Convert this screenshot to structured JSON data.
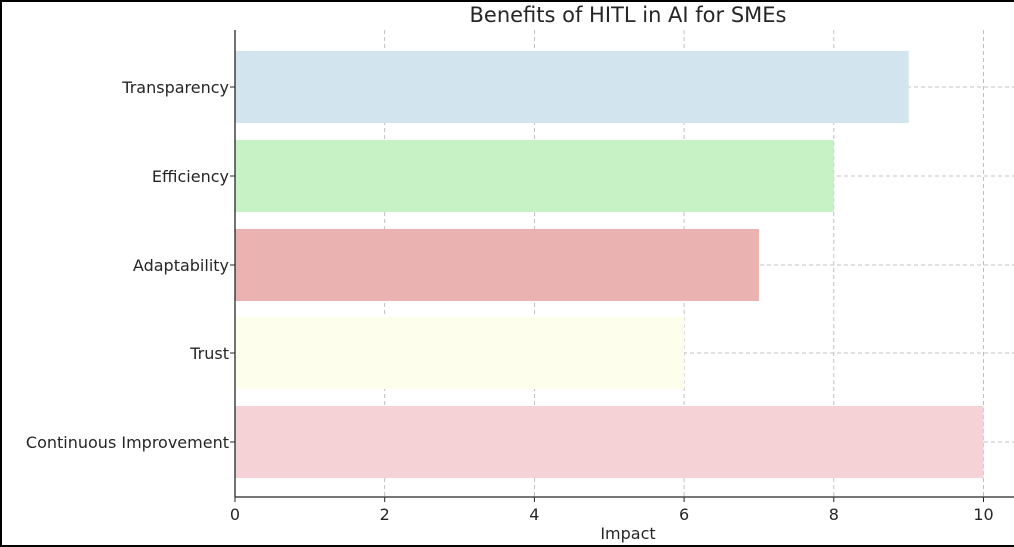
{
  "chart_data": {
    "type": "bar",
    "orientation": "horizontal",
    "title": "Benefits of HITL in AI for SMEs",
    "xlabel": "Impact",
    "ylabel": "",
    "categories": [
      "Transparency",
      "Efficiency",
      "Adaptability",
      "Trust",
      "Continuous Improvement"
    ],
    "values": [
      9,
      8,
      7,
      6,
      10
    ],
    "colors": [
      "#d2e5ef",
      "#c6f2c6",
      "#ebb2b2",
      "#fefeec",
      "#f5d2d6"
    ],
    "xlim": [
      0,
      10.4
    ],
    "xticks": [
      "0",
      "2",
      "4",
      "6",
      "8",
      "10"
    ],
    "grid": true,
    "legend": "none"
  }
}
